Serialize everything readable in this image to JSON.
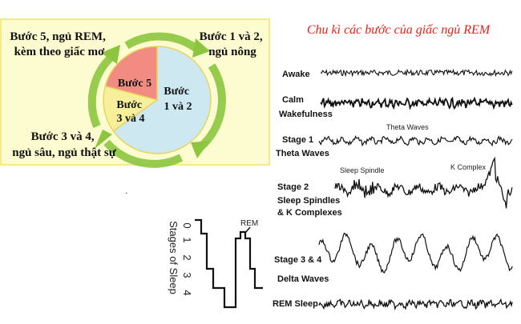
{
  "title": "Chu kì các bước của giấc ngủ REM",
  "cycle": {
    "corner_labels": {
      "top_left": [
        "Bước 5, ngủ REM,",
        "kèm theo giấc mơ"
      ],
      "top_right": [
        "Bước 1 và 2,",
        "ngủ nông"
      ],
      "bottom_left": [
        "Bước 3 và 4,",
        "ngủ sâu, ngủ thật sự"
      ]
    },
    "pie_labels": {
      "step5": [
        "Bước 5"
      ],
      "step34": [
        "Bước",
        "3 và 4"
      ],
      "step12": [
        "Bước",
        "1 và 2"
      ]
    },
    "colors": {
      "panel_bg": "#fdfbd0",
      "panel_border": "#f5e98a",
      "arrow": "#8cc63f",
      "step5": "#f28b82",
      "step34": "#f7ef9a",
      "step12": "#cde8f0"
    }
  },
  "hypnogram": {
    "ylabel": "Stages of Sleep",
    "ticks": [
      "0",
      "1",
      "2",
      "3",
      "4"
    ],
    "rem_label": "REM"
  },
  "eeg": {
    "rows": [
      {
        "label": [
          "Awake"
        ]
      },
      {
        "label": [
          "Calm",
          "Wakefulness"
        ]
      },
      {
        "label": [
          "Stage 1",
          "Theta Waves"
        ],
        "annotations": [
          "Theta Waves"
        ]
      },
      {
        "label": [
          "Stage 2",
          "Sleep Spindles",
          "& K Complexes"
        ],
        "annotations": [
          "Sleep Spindle",
          "K Complex"
        ]
      },
      {
        "label": [
          "Stage 3 & 4",
          "Delta Waves"
        ]
      },
      {
        "label": [
          "REM Sleep"
        ]
      }
    ]
  }
}
